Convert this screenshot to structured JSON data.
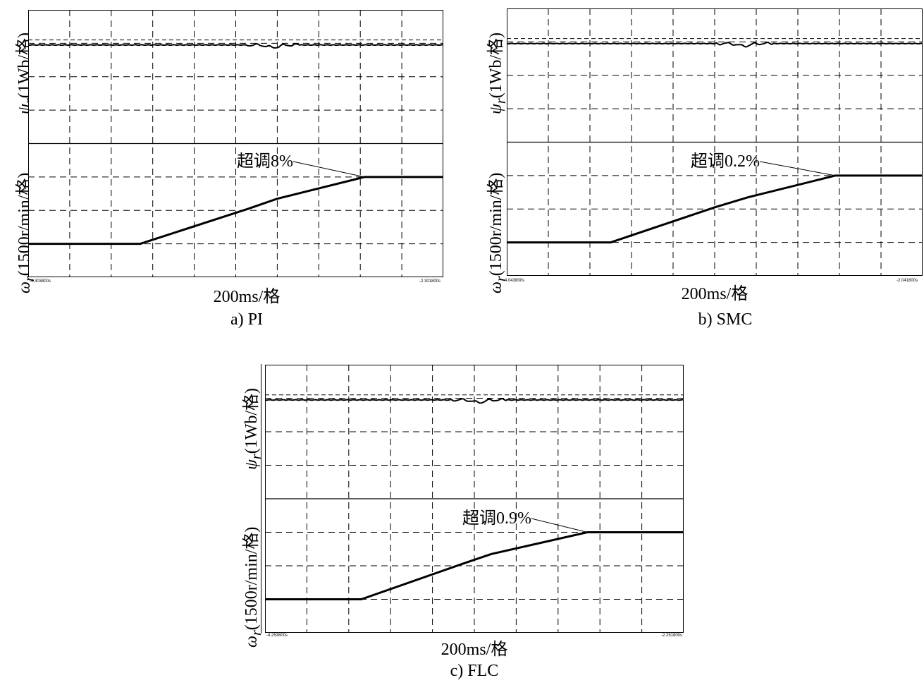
{
  "chart_data": [
    {
      "type": "line",
      "panel": "a",
      "caption": "a) PI",
      "xlabel": "200ms/格",
      "flux_ylabel_symbol": "ψ",
      "flux_ylabel_sub": "r",
      "flux_ylabel_unit": "(1Wb/格)",
      "speed_ylabel_symbol": "ω",
      "speed_ylabel_sub": "r",
      "speed_ylabel_unit": "(1500r/min/格)",
      "x_start_label": "-4.303800s",
      "x_end_label": "-2.301800s",
      "xlim_div": [
        0,
        10
      ],
      "flux_ylim_div": [
        0,
        4
      ],
      "speed_ylim_div": [
        0,
        4
      ],
      "flux_level_div": 2.95,
      "flux_ref_div": 3.1,
      "flux_dip_at_div": 5.9,
      "speed_points_div": [
        [
          0,
          1.0
        ],
        [
          2.7,
          1.0
        ],
        [
          5.3,
          2.05
        ],
        [
          6.0,
          2.35
        ],
        [
          8.1,
          3.0
        ],
        [
          10,
          3.0
        ]
      ],
      "annotation": "超调8%",
      "overshoot": "8%"
    },
    {
      "type": "line",
      "panel": "b",
      "caption": "b) SMC",
      "xlabel": "200ms/格",
      "flux_ylabel_symbol": "ψ",
      "flux_ylabel_sub": "r",
      "flux_ylabel_unit": "(1Wb/格)",
      "speed_ylabel_symbol": "ω",
      "speed_ylabel_sub": "r",
      "speed_ylabel_unit": "(1500r/min/格)",
      "x_start_label": "-4.043800s",
      "x_end_label": "-2.041800s",
      "xlim_div": [
        0,
        10
      ],
      "flux_ylim_div": [
        0,
        4
      ],
      "speed_ylim_div": [
        0,
        4
      ],
      "flux_level_div": 2.95,
      "flux_ref_div": 3.1,
      "flux_dip_at_div": 5.7,
      "speed_points_div": [
        [
          0,
          1.0
        ],
        [
          2.5,
          1.0
        ],
        [
          5.0,
          2.05
        ],
        [
          5.8,
          2.35
        ],
        [
          7.9,
          3.0
        ],
        [
          10,
          3.0
        ]
      ],
      "annotation": "超调0.2%",
      "overshoot": "0.2%"
    },
    {
      "type": "line",
      "panel": "c",
      "caption": "c) FLC",
      "xlabel": "200ms/格",
      "flux_ylabel_symbol": "ψ",
      "flux_ylabel_sub": "r",
      "flux_ylabel_unit": "(1Wb/格)",
      "speed_ylabel_symbol": "ω",
      "speed_ylabel_sub": "r",
      "speed_ylabel_unit": "(1500r/min/格)",
      "x_start_label": "-4.253800s",
      "x_end_label": "-2.251800s",
      "xlim_div": [
        0,
        10
      ],
      "flux_ylim_div": [
        0,
        4
      ],
      "speed_ylim_div": [
        0,
        4
      ],
      "flux_level_div": 2.95,
      "flux_ref_div": 3.1,
      "flux_dip_at_div": 5.1,
      "speed_points_div": [
        [
          0,
          1.0
        ],
        [
          2.3,
          1.0
        ],
        [
          4.7,
          2.05
        ],
        [
          5.4,
          2.35
        ],
        [
          7.7,
          3.0
        ],
        [
          10,
          3.0
        ]
      ],
      "annotation": "超调0.9%",
      "overshoot": "0.9%"
    }
  ],
  "grid": "dashed",
  "colors": {
    "trace": "#000000",
    "grid": "#000000",
    "background": "#ffffff"
  }
}
